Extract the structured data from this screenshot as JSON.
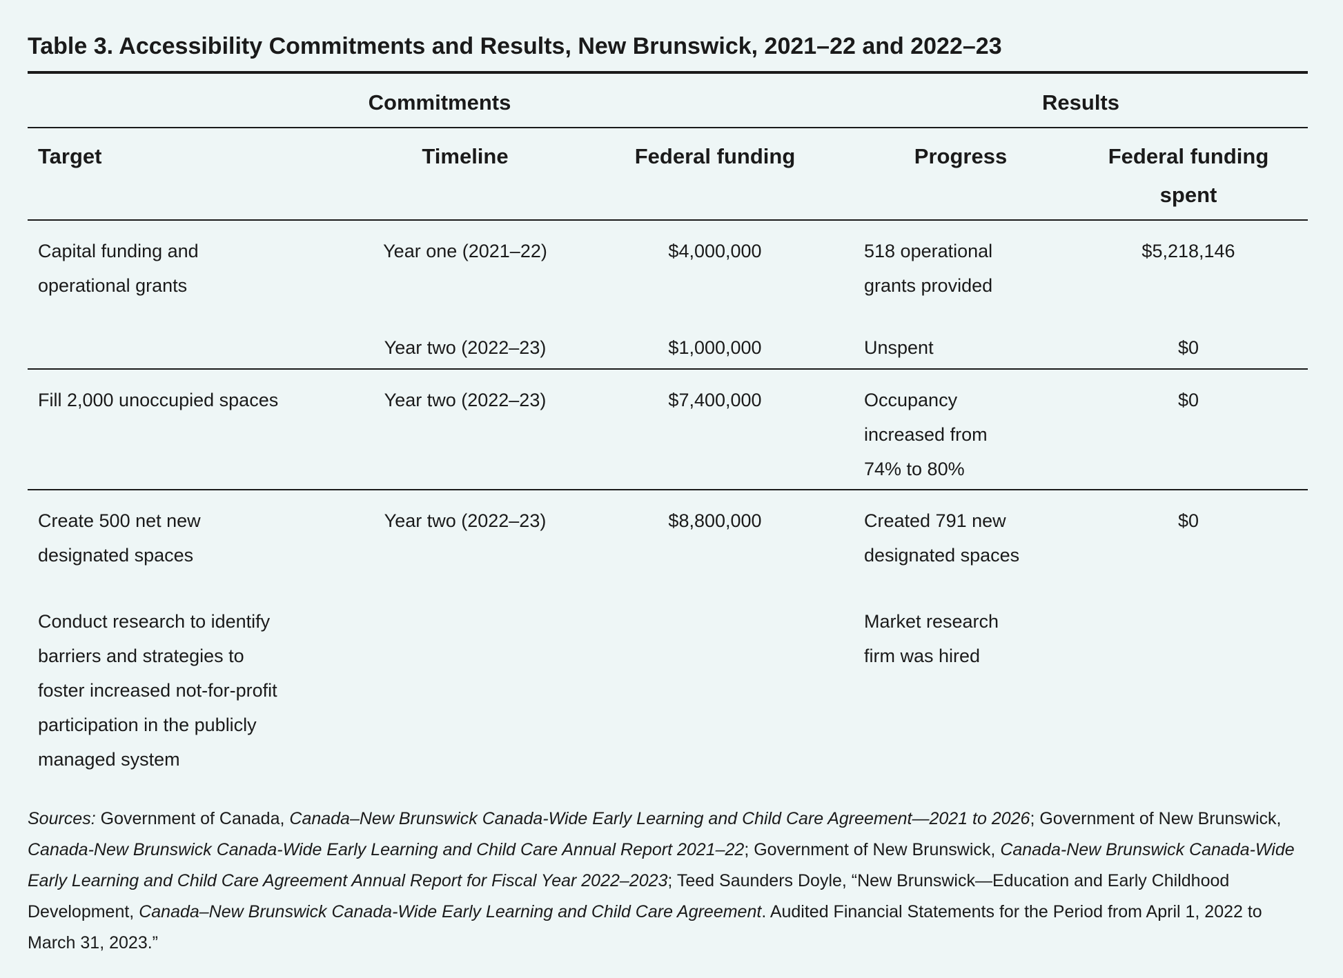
{
  "title": "Table 3. Accessibility Commitments and Results, New Brunswick, 2021–22 and 2022–23",
  "groups": [
    "Commitments",
    "Results"
  ],
  "columns": [
    "Target",
    "Timeline",
    "Federal funding",
    "Progress",
    "Federal funding spent"
  ],
  "rows": [
    {
      "target": "Capital funding and\noperational grants",
      "timeline": "Year one (2021–22)",
      "federal_funding": "$4,000,000",
      "progress": "518 operational\ngrants provided",
      "funding_spent": "$5,218,146"
    },
    {
      "timeline": "Year two (2022–23)",
      "federal_funding": "$1,000,000",
      "progress": "Unspent",
      "funding_spent": "$0"
    },
    {
      "target": "Fill 2,000 unoccupied spaces",
      "timeline": "Year two (2022–23)",
      "federal_funding": "$7,400,000",
      "progress": "Occupancy\nincreased from\n74% to 80%",
      "funding_spent": "$0"
    },
    {
      "target": "Create 500 net new\ndesignated spaces",
      "timeline": "Year two (2022–23)",
      "federal_funding": "$8,800,000",
      "progress": "Created 791 new\ndesignated spaces",
      "funding_spent": "$0"
    },
    {
      "target": "Conduct research to identify\nbarriers and strategies to\nfoster increased not-for-profit\nparticipation in the publicly\nmanaged system",
      "progress": "Market research\nfirm was hired"
    }
  ],
  "sources": {
    "segments": [
      {
        "text": "Sources:",
        "italic": true
      },
      {
        "text": " Government of Canada, ",
        "italic": false
      },
      {
        "text": "Canada–New Brunswick Canada-Wide Early Learning and Child Care Agreement—2021 to 2026",
        "italic": true
      },
      {
        "text": "; Government of New Brunswick, ",
        "italic": false
      },
      {
        "text": "Canada-New Brunswick Canada-Wide Early Learning and Child Care Annual Report 2021–22",
        "italic": true
      },
      {
        "text": "; Government of New Brunswick, ",
        "italic": false
      },
      {
        "text": "Canada-New Brunswick Canada-Wide Early Learning and Child Care Agreement Annual Report for Fiscal Year 2022–2023",
        "italic": true
      },
      {
        "text": "; Teed Saunders Doyle, “New Brunswick—Education and Early Childhood Development, ",
        "italic": false
      },
      {
        "text": "Canada–New Brunswick Canada-Wide Early Learning and Child Care Agreement",
        "italic": true
      },
      {
        "text": ". Audited Financial Statements for the Period from April 1, 2022 to March 31, 2023.”",
        "italic": false
      }
    ]
  }
}
